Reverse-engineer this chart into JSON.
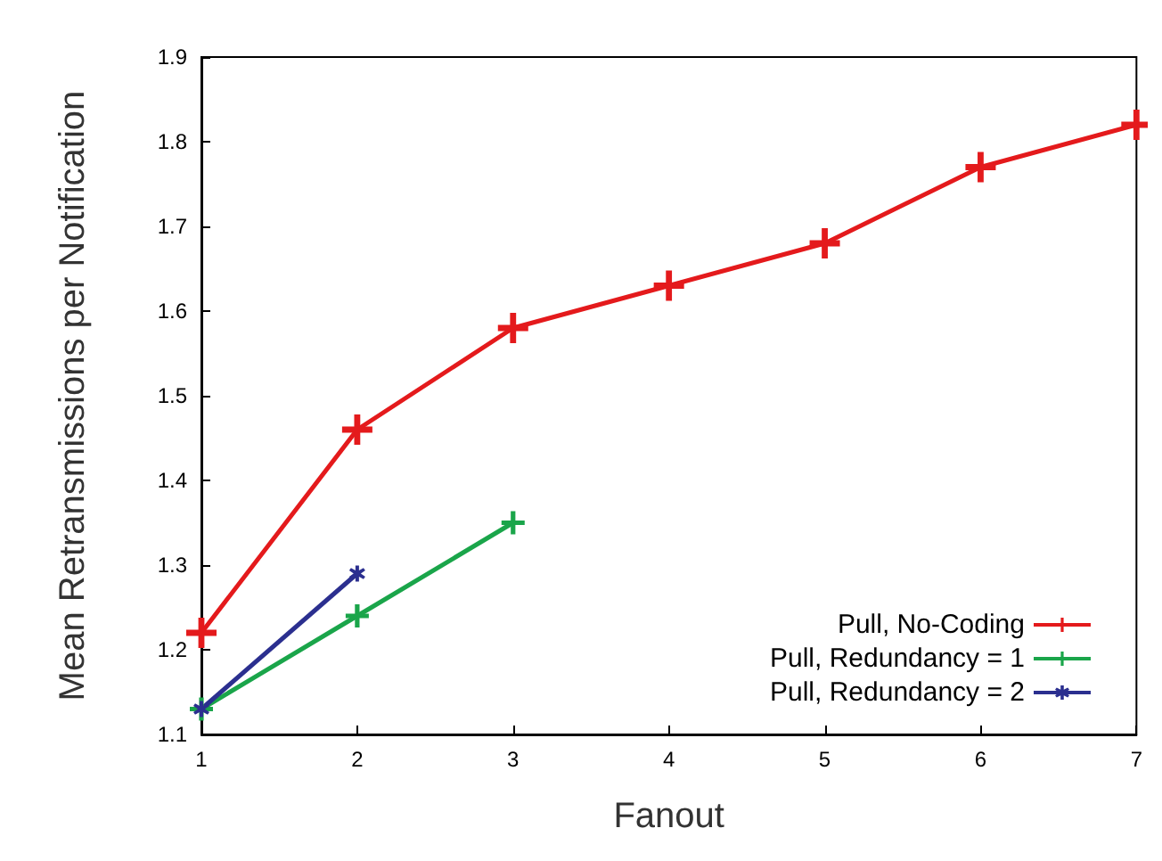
{
  "chart_data": {
    "type": "line",
    "xlabel": "Fanout",
    "ylabel": "Mean Retransmissions per Notification",
    "xlim": [
      1,
      7
    ],
    "xticks": [
      1,
      2,
      3,
      4,
      5,
      6,
      7
    ],
    "ylim": [
      1.1,
      1.9
    ],
    "yticks": [
      1.1,
      1.2,
      1.3,
      1.4,
      1.5,
      1.6,
      1.7,
      1.8,
      1.9
    ],
    "grid": false,
    "legend": "bottom right",
    "line_style": "solid",
    "series": [
      {
        "name": "Pull, No-Coding",
        "color": "#e41a1c",
        "marker": "cross",
        "x": [
          1,
          2,
          3,
          4,
          5,
          6,
          7
        ],
        "values": [
          1.22,
          1.46,
          1.58,
          1.63,
          1.68,
          1.77,
          1.82
        ]
      },
      {
        "name": "Pull, Redundancy = 1",
        "color": "#1aa54a",
        "marker": "cross",
        "x": [
          1,
          2,
          3
        ],
        "values": [
          1.13,
          1.24,
          1.35
        ]
      },
      {
        "name": "Pull, Redundancy = 2",
        "color": "#2b2f8f",
        "marker": "star",
        "x": [
          1,
          2
        ],
        "values": [
          1.13,
          1.29
        ]
      }
    ]
  }
}
